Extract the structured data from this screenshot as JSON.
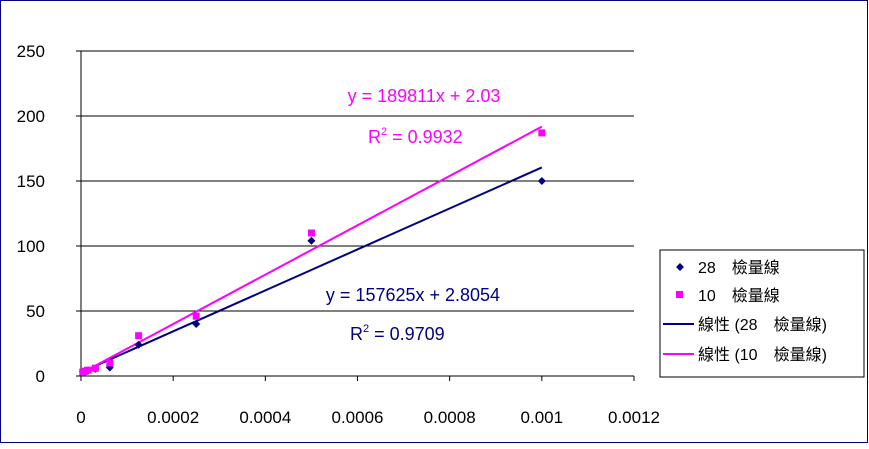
{
  "chart_data": {
    "type": "scatter",
    "title": "",
    "xlabel": "",
    "ylabel": "",
    "xlim": [
      0,
      0.0012
    ],
    "ylim": [
      0,
      250
    ],
    "x_ticks": [
      "0",
      "0.0002",
      "0.0004",
      "0.0006",
      "0.0008",
      "0.001",
      "0.0012"
    ],
    "y_ticks": [
      "0",
      "50",
      "100",
      "150",
      "200",
      "250"
    ],
    "grid": "horizontal",
    "legend_position": "right",
    "series": [
      {
        "name": "28　檢量線",
        "marker": "diamond",
        "color": "#000080",
        "points": [
          [
            3.9e-06,
            3.5
          ],
          [
            7.8e-06,
            3.8
          ],
          [
            1.56e-05,
            4.2
          ],
          [
            3.125e-05,
            5.5
          ],
          [
            6.25e-05,
            6.5
          ],
          [
            0.000125,
            24
          ],
          [
            0.00025,
            40
          ],
          [
            0.0005,
            104
          ],
          [
            0.001,
            150
          ]
        ]
      },
      {
        "name": "10　檢量線",
        "marker": "square",
        "color": "#FF00FF",
        "points": [
          [
            3.9e-06,
            3.0
          ],
          [
            7.8e-06,
            3.5
          ],
          [
            1.56e-05,
            4.5
          ],
          [
            3.125e-05,
            6.0
          ],
          [
            6.25e-05,
            10
          ],
          [
            0.000125,
            31
          ],
          [
            0.00025,
            46
          ],
          [
            0.0005,
            110
          ],
          [
            0.001,
            187
          ]
        ]
      }
    ],
    "trendlines": [
      {
        "name": "線性 (28　檢量線)",
        "color": "#000080",
        "slope": 157625,
        "intercept": 2.8054,
        "x_range": [
          0,
          0.001
        ],
        "equation": "y = 157625x + 2.8054",
        "r2_label": "R",
        "r2_value": " = 0.9709",
        "r2_sup": "2"
      },
      {
        "name": "線性 (10　檢量線)",
        "color": "#FF00FF",
        "slope": 189811,
        "intercept": 2.03,
        "x_range": [
          0,
          0.001
        ],
        "equation": "y = 189811x + 2.03",
        "r2_label": "R",
        "r2_value": " = 0.9932",
        "r2_sup": "2"
      }
    ]
  }
}
